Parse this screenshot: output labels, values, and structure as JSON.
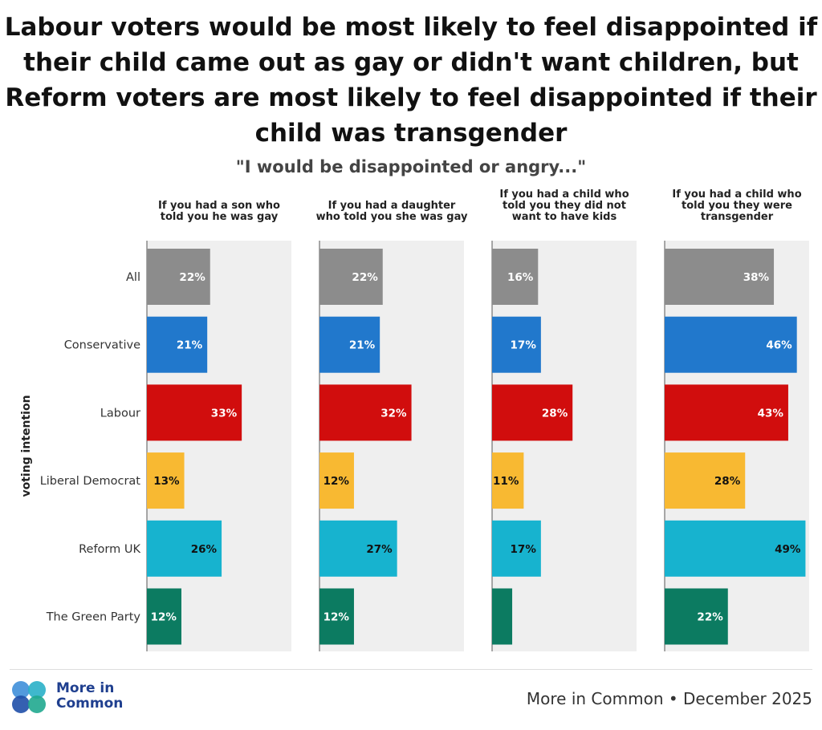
{
  "title": "Labour voters would be most likely to feel disappointed if their child came out as gay or didn't want children, but Reform voters are most likely to feel disappointed if their child was transgender",
  "subtitle": "\"I would be disappointed or angry...\"",
  "colors": {
    "panel_bg": "#efefef",
    "label_white": "#ffffff",
    "label_dark": "#111111"
  },
  "chart_data": {
    "type": "bar",
    "orientation": "horizontal",
    "ylabel": "voting intention",
    "xlim": [
      0,
      50
    ],
    "grid": false,
    "categories": [
      "All",
      "Conservative",
      "Labour",
      "Liberal Democrat",
      "Reform UK",
      "The Green Party"
    ],
    "category_colors": [
      "#8c8c8c",
      "#2178cc",
      "#d10d0d",
      "#f8b932",
      "#17b3cf",
      "#0c7b61"
    ],
    "panels": [
      {
        "title": "If you had a son who told you he was gay",
        "values": [
          22,
          21,
          33,
          13,
          26,
          12
        ],
        "labels": [
          "22%",
          "21%",
          "33%",
          "13%",
          "26%",
          "12%"
        ]
      },
      {
        "title": "If you had a daughter who told you she was gay",
        "values": [
          22,
          21,
          32,
          12,
          27,
          12
        ],
        "labels": [
          "22%",
          "21%",
          "32%",
          "12%",
          "27%",
          "12%"
        ]
      },
      {
        "title": "If you had a child who told you they did not want to have kids",
        "values": [
          16,
          17,
          28,
          11,
          17,
          7
        ],
        "labels": [
          "16%",
          "17%",
          "28%",
          "11%",
          "17%",
          ""
        ]
      },
      {
        "title": "If you had a child who told you they were transgender",
        "values": [
          38,
          46,
          43,
          28,
          49,
          22
        ],
        "labels": [
          "38%",
          "46%",
          "43%",
          "28%",
          "49%",
          "22%"
        ]
      }
    ]
  },
  "footer": {
    "logo_line1": "More in",
    "logo_line2": "Common",
    "source": "More in Common • December 2025"
  }
}
